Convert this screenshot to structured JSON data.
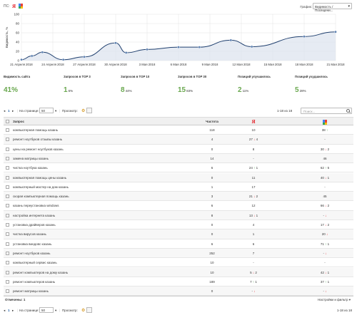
{
  "topbar": {
    "ps_label": "ПС:",
    "yandex": "Я",
    "graph_label": "График:",
    "graph_select": "Видимость / Посещени..."
  },
  "chart": {
    "ylabel": "Видимость, %",
    "y_ticks": [
      "100",
      "80",
      "60",
      "40",
      "20",
      "0"
    ],
    "x_labels": [
      "21 Апреля 2018",
      "24 Апреля 2018",
      "27 Апреля 2018",
      "30 Апреля 2018",
      "3 Мая 2018",
      "6 Мая 2018",
      "9 Мая 2018",
      "12 Мая 2018",
      "15 Мая 2018",
      "18 Мая 2018",
      "21 Мая 2018"
    ]
  },
  "chart_data": {
    "type": "area",
    "x": [
      "21 Апреля 2018",
      "22 Апреля 2018",
      "23 Апреля 2018",
      "25 Апреля 2018",
      "27 Апреля 2018",
      "30 Апреля 2018",
      "1 Мая 2018",
      "3 Мая 2018",
      "6 Мая 2018",
      "8 Мая 2018",
      "11 Мая 2018",
      "13 Мая 2018",
      "18 Мая 2018",
      "21 Мая 2018"
    ],
    "values": [
      2,
      10,
      18,
      2,
      8,
      38,
      17,
      24,
      29,
      29,
      44,
      30,
      52,
      62
    ],
    "ylim": [
      0,
      100
    ],
    "ylabel": "Видимость, %",
    "grid": true,
    "color": "#1f3f6e"
  },
  "stats": [
    {
      "label": "Видимость сайта",
      "value": "41%",
      "pct": ""
    },
    {
      "label": "Запросов в TOP 3",
      "value": "1",
      "pct": "6%"
    },
    {
      "label": "Запросов в TOP 10",
      "value": "8",
      "pct": "44%"
    },
    {
      "label": "Запросов в TOP 30",
      "value": "15",
      "pct": "83%"
    },
    {
      "label": "Позиций улучшилось",
      "value": "2",
      "pct": "11%"
    },
    {
      "label": "Позиций ухудшилось",
      "value": "5",
      "pct": "28%"
    }
  ],
  "pager": {
    "page": "1",
    "per_page_label": "На странице:",
    "per_page": "50",
    "view_label": "Просмотр:",
    "range": "1-18 из 18",
    "search_placeholder": "Поиск..."
  },
  "table": {
    "headers": {
      "query": "Запрос",
      "freq": "Частота"
    },
    "rows": [
      {
        "q": "компьютерная помощь казань",
        "f": "118",
        "y": "10",
        "yc": "",
        "yd": "",
        "g": "38",
        "gc": "↑",
        "gd": "",
        "gt": "up"
      },
      {
        "q": "ремонт ноутбуков отзывы казань",
        "f": "4",
        "y": "27",
        "yc": "↓",
        "yd": "4",
        "g": "-",
        "gc": "",
        "gd": "",
        "gt": "dn",
        "yt": "dn"
      },
      {
        "q": "цены на ремонт ноутбуков казань",
        "f": "0",
        "y": "8",
        "yc": "",
        "yd": "",
        "g": "30",
        "gc": "↓",
        "gd": "2",
        "gt": "dn"
      },
      {
        "q": "замена матрицы казань",
        "f": "14",
        "y": "-",
        "yc": "",
        "yd": "",
        "g": "46",
        "gc": "",
        "gd": "",
        "gt": ""
      },
      {
        "q": "чистка ноутбука казань",
        "f": "6",
        "y": "24",
        "yc": "↑",
        "yd": "1",
        "yt": "up",
        "g": "62",
        "gc": "↑",
        "gd": "5",
        "gt": "up"
      },
      {
        "q": "компьютерная помощь цены казань",
        "f": "0",
        "y": "11",
        "yc": "",
        "yd": "",
        "g": "40",
        "gc": "↓",
        "gd": "1",
        "gt": "dn"
      },
      {
        "q": "компьютерный мастер на дом казань",
        "f": "1",
        "y": "17",
        "yc": "",
        "yd": "",
        "g": "-",
        "gc": "",
        "gd": "",
        "gt": ""
      },
      {
        "q": "скорая компьютерная помощь казань",
        "f": "3",
        "y": "21",
        "yc": "↓",
        "yd": "2",
        "yt": "dn",
        "g": "45",
        "gc": "",
        "gd": "",
        "gt": ""
      },
      {
        "q": "казань переустановка windows",
        "f": "6",
        "y": "12",
        "yc": "",
        "yd": "",
        "g": "66",
        "gc": "↓",
        "gd": "2",
        "gt": "dn"
      },
      {
        "q": "настройка интернета казань",
        "f": "8",
        "y": "13",
        "yc": "↓",
        "yd": "1",
        "yt": "dn",
        "g": "-",
        "gc": "↓",
        "gd": "",
        "gt": "dn"
      },
      {
        "q": "установка драйверов казань",
        "f": "0",
        "y": "4",
        "yc": "",
        "yd": "",
        "g": "17",
        "gc": "↓",
        "gd": "2",
        "gt": "dn"
      },
      {
        "q": "чистка вирусов казань",
        "f": "0",
        "y": "1",
        "yc": "",
        "yd": "",
        "g": "20",
        "gc": "↓",
        "gd": "",
        "gt": "dn"
      },
      {
        "q": "установка виндовс казань",
        "f": "6",
        "y": "6",
        "yc": "",
        "yd": "",
        "g": "71",
        "gc": "↑",
        "gd": "1",
        "gt": "up"
      },
      {
        "q": "ремонт ноутбуков казань",
        "f": "252",
        "y": "7",
        "yc": "",
        "yd": "",
        "g": "-",
        "gc": "↓",
        "gd": "",
        "gt": "dn"
      },
      {
        "q": "компьютерный сервис казань",
        "f": "10",
        "y": "-",
        "yc": "",
        "yd": "",
        "g": "-",
        "gc": "",
        "gd": "",
        "gt": ""
      },
      {
        "q": "ремонт компьютеров на дому казань",
        "f": "10",
        "y": "5",
        "yc": "↓",
        "yd": "2",
        "yt": "dn",
        "g": "42",
        "gc": "↓",
        "gd": "1",
        "gt": "dn"
      },
      {
        "q": "ремонт компьютеров казань",
        "f": "189",
        "y": "7",
        "yc": "↑",
        "yd": "1",
        "yt": "up",
        "g": "37",
        "gc": "↑",
        "gd": "1",
        "gt": "up"
      },
      {
        "q": "ремонт матрицы казань",
        "f": "0",
        "y": "-",
        "yc": "↓",
        "yd": "",
        "yt": "dn",
        "g": "-",
        "gc": "↓",
        "gd": "",
        "gt": "dn"
      }
    ]
  },
  "footer": {
    "marked": "Отмечены: 1",
    "settings": "Настройки и фильтр ▾",
    "page": "1",
    "per_page_label": "На странице:",
    "per_page": "50",
    "view_label": "Просмотр:",
    "range": "1-18 из 18"
  }
}
